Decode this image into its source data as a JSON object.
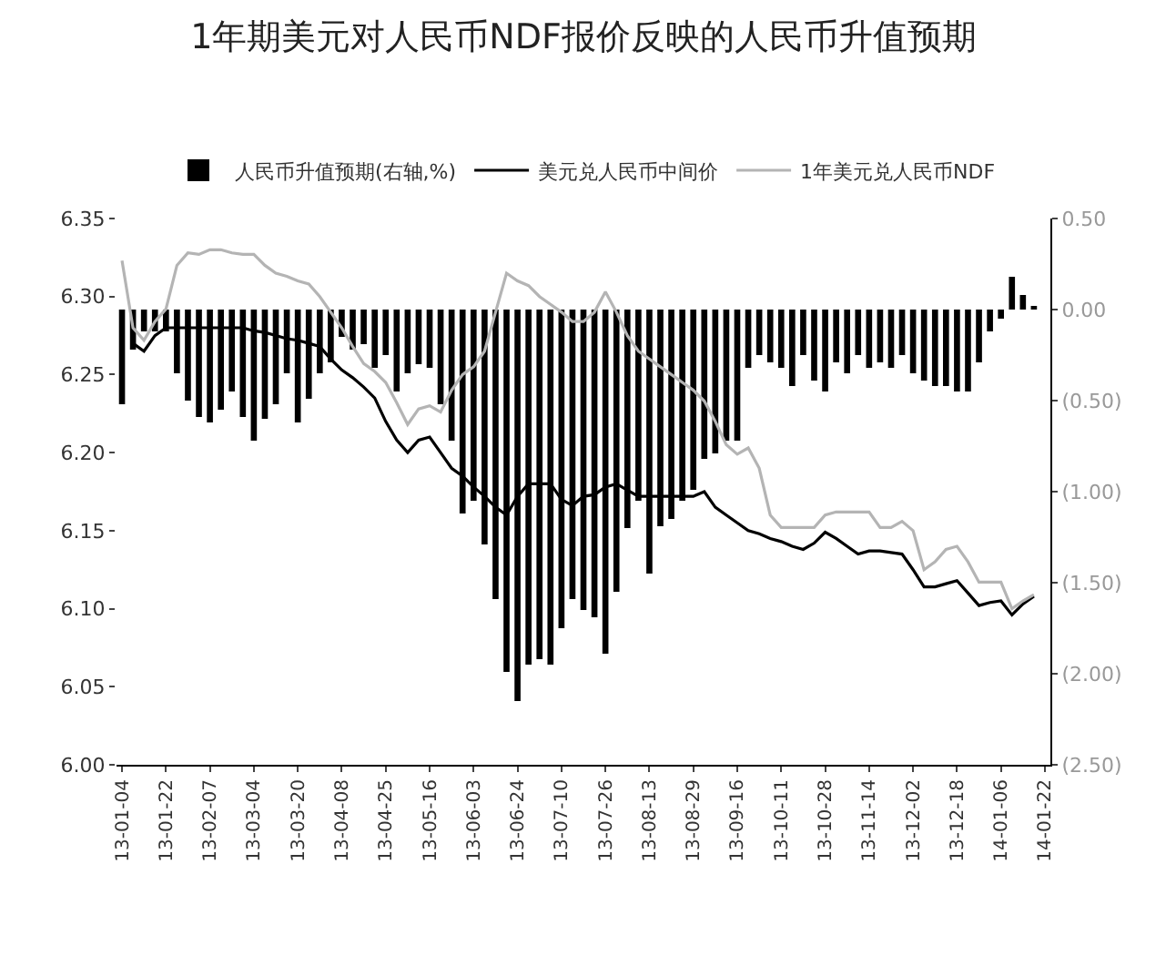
{
  "chart_data": {
    "type": "bar",
    "title": "1年期美元对人民币NDF报价反映的人民币升值预期",
    "categories": [
      "13-01-04",
      null,
      null,
      null,
      "13-01-22",
      null,
      null,
      null,
      "13-02-07",
      null,
      null,
      null,
      "13-03-04",
      null,
      null,
      null,
      "13-03-20",
      null,
      null,
      null,
      "13-04-08",
      null,
      null,
      null,
      "13-04-25",
      null,
      null,
      null,
      "13-05-16",
      null,
      null,
      null,
      "13-06-03",
      null,
      null,
      null,
      "13-06-24",
      null,
      null,
      null,
      "13-07-10",
      null,
      null,
      null,
      "13-07-26",
      null,
      null,
      null,
      "13-08-13",
      null,
      null,
      null,
      "13-08-29",
      null,
      null,
      null,
      "13-09-16",
      null,
      null,
      null,
      "13-10-11",
      null,
      null,
      null,
      "13-10-28",
      null,
      null,
      null,
      "13-11-14",
      null,
      null,
      null,
      "13-12-02",
      null,
      null,
      null,
      "13-12-18",
      null,
      null,
      null,
      "14-01-06",
      null,
      null,
      null,
      "14-01-22"
    ],
    "series": [
      {
        "name": "人民币升值预期(右轴,%)",
        "axis": "y2",
        "color": "#000000",
        "values": [
          -0.52,
          -0.22,
          -0.12,
          -0.12,
          -0.12,
          -0.35,
          -0.5,
          -0.59,
          -0.62,
          -0.55,
          -0.45,
          -0.59,
          -0.72,
          -0.6,
          -0.52,
          -0.35,
          -0.62,
          -0.49,
          -0.35,
          -0.29,
          -0.15,
          -0.22,
          -0.19,
          -0.32,
          -0.25,
          -0.45,
          -0.35,
          -0.3,
          -0.32,
          -0.52,
          -0.72,
          -1.12,
          -1.05,
          -1.29,
          -1.59,
          -1.99,
          -2.15,
          -1.95,
          -1.92,
          -1.95,
          -1.75,
          -1.59,
          -1.65,
          -1.69,
          -1.89,
          -1.55,
          -1.2,
          -1.05,
          -1.45,
          -1.19,
          -1.15,
          -1.05,
          -0.99,
          -0.82,
          -0.79,
          -0.72,
          -0.72,
          -0.32,
          -0.25,
          -0.29,
          -0.32,
          -0.42,
          -0.25,
          -0.39,
          -0.45,
          -0.29,
          -0.35,
          -0.25,
          -0.32,
          -0.29,
          -0.32,
          -0.25,
          -0.35,
          -0.39,
          -0.42,
          -0.42,
          -0.45,
          -0.45,
          -0.29,
          -0.12,
          -0.05,
          0.18,
          0.08,
          0.02,
          null
        ]
      },
      {
        "name": "美元兑人民币中间价",
        "type": "line",
        "color": "#000000",
        "values": [
          null,
          6.27,
          6.265,
          6.275,
          6.28,
          6.28,
          6.28,
          6.28,
          6.28,
          6.28,
          6.28,
          6.28,
          6.278,
          6.277,
          6.275,
          6.273,
          6.272,
          6.27,
          6.268,
          6.26,
          6.253,
          6.248,
          6.242,
          6.235,
          6.22,
          6.208,
          6.2,
          6.208,
          6.21,
          6.2,
          6.19,
          6.185,
          6.178,
          6.172,
          6.165,
          6.16,
          6.172,
          6.18,
          6.18,
          6.18,
          6.17,
          6.166,
          6.172,
          6.173,
          6.178,
          6.18,
          6.176,
          6.172,
          6.172,
          6.172,
          6.172,
          6.172,
          6.172,
          6.175,
          6.165,
          6.16,
          6.155,
          6.15,
          6.148,
          6.145,
          6.143,
          6.14,
          6.138,
          6.142,
          6.149,
          6.145,
          6.14,
          6.135,
          6.137,
          6.137,
          6.136,
          6.135,
          6.125,
          6.114,
          6.114,
          6.116,
          6.118,
          6.11,
          6.102,
          6.104,
          6.105,
          6.096,
          6.103,
          6.108,
          null
        ]
      },
      {
        "name": "1年美元兑人民币NDF",
        "type": "line",
        "color": "#b4b4b4",
        "values": [
          6.323,
          6.28,
          6.272,
          6.284,
          6.292,
          6.32,
          6.328,
          6.327,
          6.33,
          6.33,
          6.328,
          6.327,
          6.327,
          6.32,
          6.315,
          6.313,
          6.31,
          6.308,
          6.3,
          6.29,
          6.28,
          6.268,
          6.257,
          6.252,
          6.245,
          6.232,
          6.218,
          6.228,
          6.23,
          6.226,
          6.24,
          6.25,
          6.255,
          6.265,
          6.29,
          6.315,
          6.31,
          6.307,
          6.3,
          6.295,
          6.29,
          6.284,
          6.284,
          6.29,
          6.303,
          6.29,
          6.275,
          6.265,
          6.26,
          6.255,
          6.25,
          6.245,
          6.24,
          6.233,
          6.22,
          6.205,
          6.199,
          6.203,
          6.19,
          6.16,
          6.152,
          6.152,
          6.152,
          6.152,
          6.16,
          6.162,
          6.162,
          6.162,
          6.162,
          6.152,
          6.152,
          6.156,
          6.15,
          6.125,
          6.13,
          6.138,
          6.14,
          6.13,
          6.117,
          6.117,
          6.117,
          6.1,
          6.105,
          6.109,
          null
        ]
      }
    ],
    "ylim": [
      6.0,
      6.35
    ],
    "yticks": [
      {
        "value": 6.0,
        "label": "6.00"
      },
      6.05,
      {
        "value": 6.1,
        "label": "6.10"
      },
      6.15,
      {
        "value": 6.2,
        "label": "6.20"
      },
      6.25,
      {
        "value": 6.3,
        "label": "6.30"
      },
      6.35
    ],
    "y2lim": [
      -2.5,
      0.5
    ],
    "y2ticks": [
      {
        "value": 0.5,
        "label": "0.50"
      },
      {
        "value": 0,
        "label": "0.00"
      },
      {
        "value": -0.5,
        "label": "(0.50)"
      },
      {
        "value": -1,
        "label": "(1.00)"
      },
      {
        "value": -1.5,
        "label": "(1.50)"
      },
      {
        "value": -2,
        "label": "(2.00)"
      },
      {
        "value": -2.5,
        "label": "(2.50)"
      }
    ],
    "grid": false,
    "legend": "top",
    "marker": "none",
    "line_style": "solid"
  }
}
